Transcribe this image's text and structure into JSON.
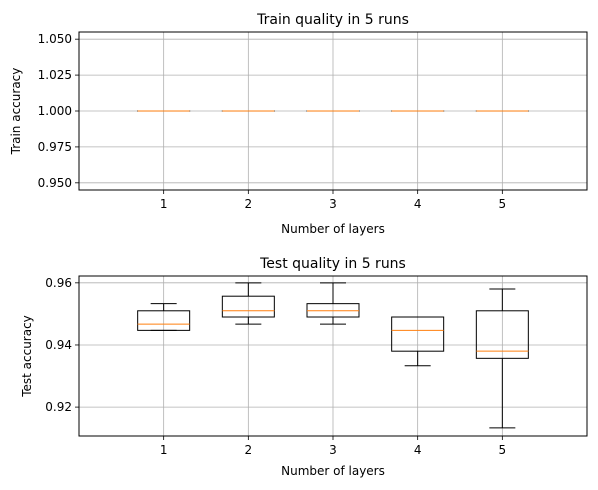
{
  "chart_data": [
    {
      "type": "box",
      "title": "Train quality in 5 runs",
      "xlabel": "Number of layers",
      "ylabel": "Train accuracy",
      "categories": [
        "1",
        "2",
        "3",
        "4",
        "5"
      ],
      "ylim": [
        0.945,
        1.055
      ],
      "yticks": [
        "0.950",
        "0.975",
        "1.000",
        "1.025",
        "1.050"
      ],
      "grid": true,
      "boxes": [
        {
          "whislo": 1.0,
          "q1": 1.0,
          "med": 1.0,
          "q3": 1.0,
          "whishi": 1.0
        },
        {
          "whislo": 1.0,
          "q1": 1.0,
          "med": 1.0,
          "q3": 1.0,
          "whishi": 1.0
        },
        {
          "whislo": 1.0,
          "q1": 1.0,
          "med": 1.0,
          "q3": 1.0,
          "whishi": 1.0
        },
        {
          "whislo": 1.0,
          "q1": 1.0,
          "med": 1.0,
          "q3": 1.0,
          "whishi": 1.0
        },
        {
          "whislo": 1.0,
          "q1": 1.0,
          "med": 1.0,
          "q3": 1.0,
          "whishi": 1.0
        }
      ]
    },
    {
      "type": "box",
      "title": "Test quality in 5 runs",
      "xlabel": "Number of layers",
      "ylabel": "Test accuracy",
      "categories": [
        "1",
        "2",
        "3",
        "4",
        "5"
      ],
      "ylim": [
        0.9107,
        0.9622
      ],
      "yticks": [
        "0.92",
        "0.94",
        "0.96"
      ],
      "grid": true,
      "boxes": [
        {
          "whislo": 0.9447,
          "q1": 0.9447,
          "med": 0.9467,
          "q3": 0.951,
          "whishi": 0.9533
        },
        {
          "whislo": 0.9467,
          "q1": 0.949,
          "med": 0.951,
          "q3": 0.9557,
          "whishi": 0.96
        },
        {
          "whislo": 0.9467,
          "q1": 0.949,
          "med": 0.951,
          "q3": 0.9533,
          "whishi": 0.96
        },
        {
          "whislo": 0.9333,
          "q1": 0.938,
          "med": 0.9447,
          "q3": 0.949,
          "whishi": 0.949
        },
        {
          "whislo": 0.9133,
          "q1": 0.9357,
          "med": 0.938,
          "q3": 0.951,
          "whishi": 0.958
        }
      ]
    }
  ],
  "colors": {
    "box": "#000000",
    "median": "#ff7f0e",
    "grid": "#b0b0b0",
    "axes": "#000000"
  }
}
